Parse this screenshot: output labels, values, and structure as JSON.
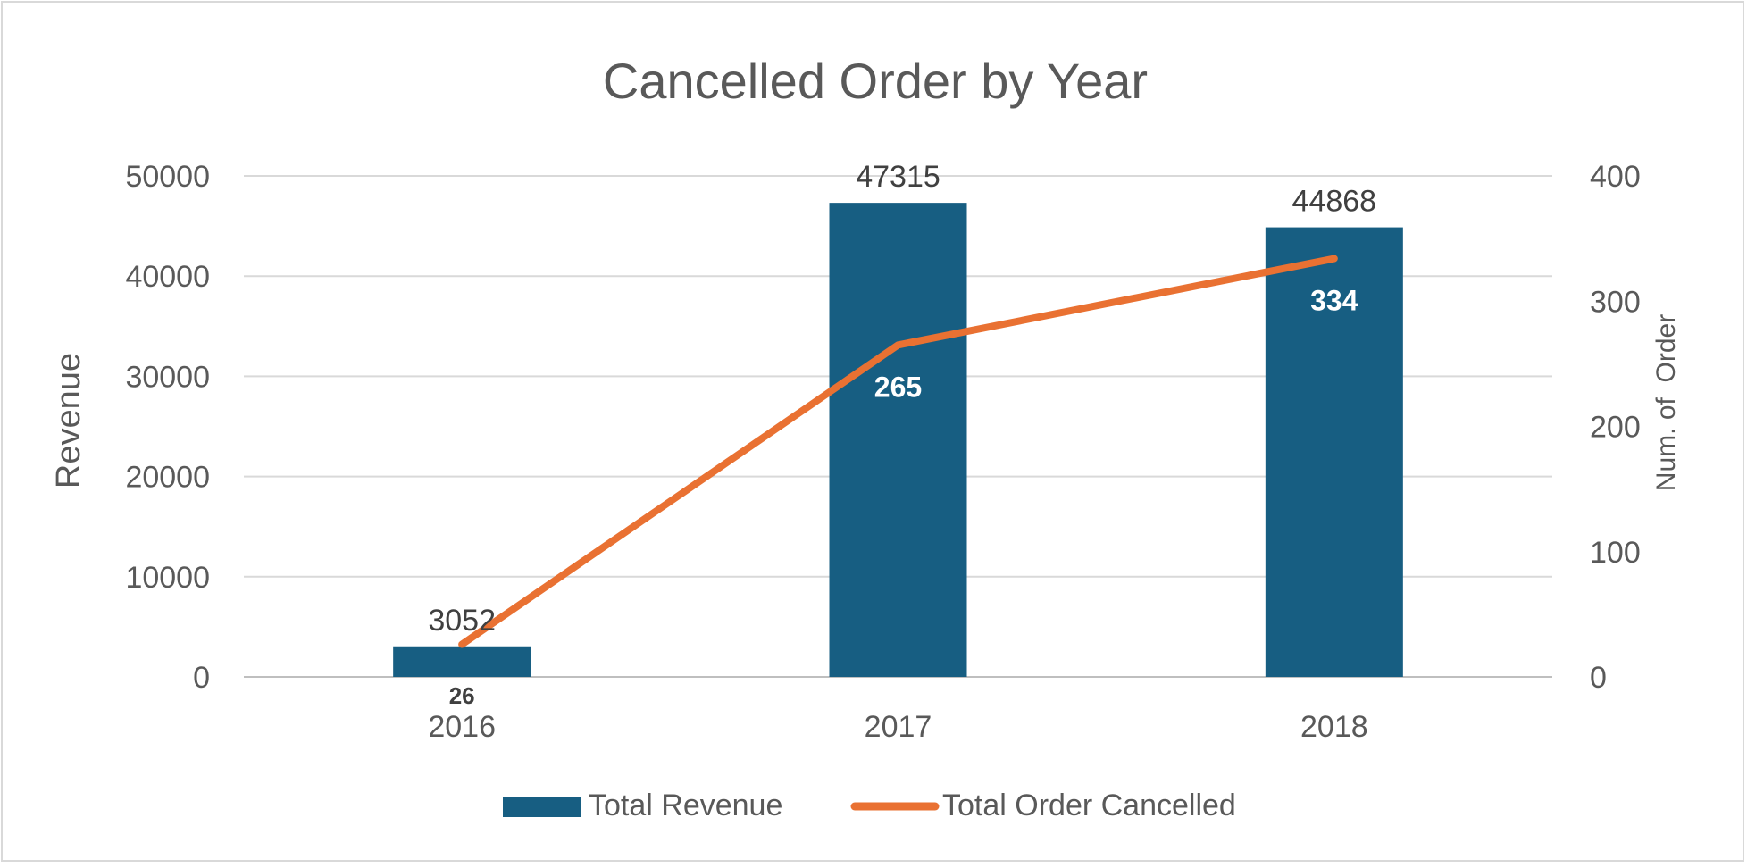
{
  "chart_data": {
    "type": "bar",
    "title": "Cancelled Order by Year",
    "categories": [
      "2016",
      "2017",
      "2018"
    ],
    "ylabel": "Revenue",
    "y2label": "Num. of  Order",
    "ylim": [
      0,
      50000
    ],
    "y2lim": [
      0,
      400
    ],
    "yticks": [
      "0",
      "10000",
      "20000",
      "30000",
      "40000",
      "50000"
    ],
    "y2ticks": [
      "0",
      "100",
      "200",
      "300",
      "400"
    ],
    "grid": true,
    "legend_position": "bottom",
    "series": [
      {
        "name": "Total Revenue",
        "type": "bar",
        "axis": "left",
        "values": [
          3052,
          47315,
          44868
        ],
        "labels": [
          "3052",
          "47315",
          "44868"
        ],
        "color": "#175e82"
      },
      {
        "name": "Total Order Cancelled",
        "type": "line",
        "axis": "right",
        "values": [
          26,
          265,
          334
        ],
        "labels": [
          "26",
          "265",
          "334"
        ],
        "color": "#e97132"
      }
    ]
  }
}
